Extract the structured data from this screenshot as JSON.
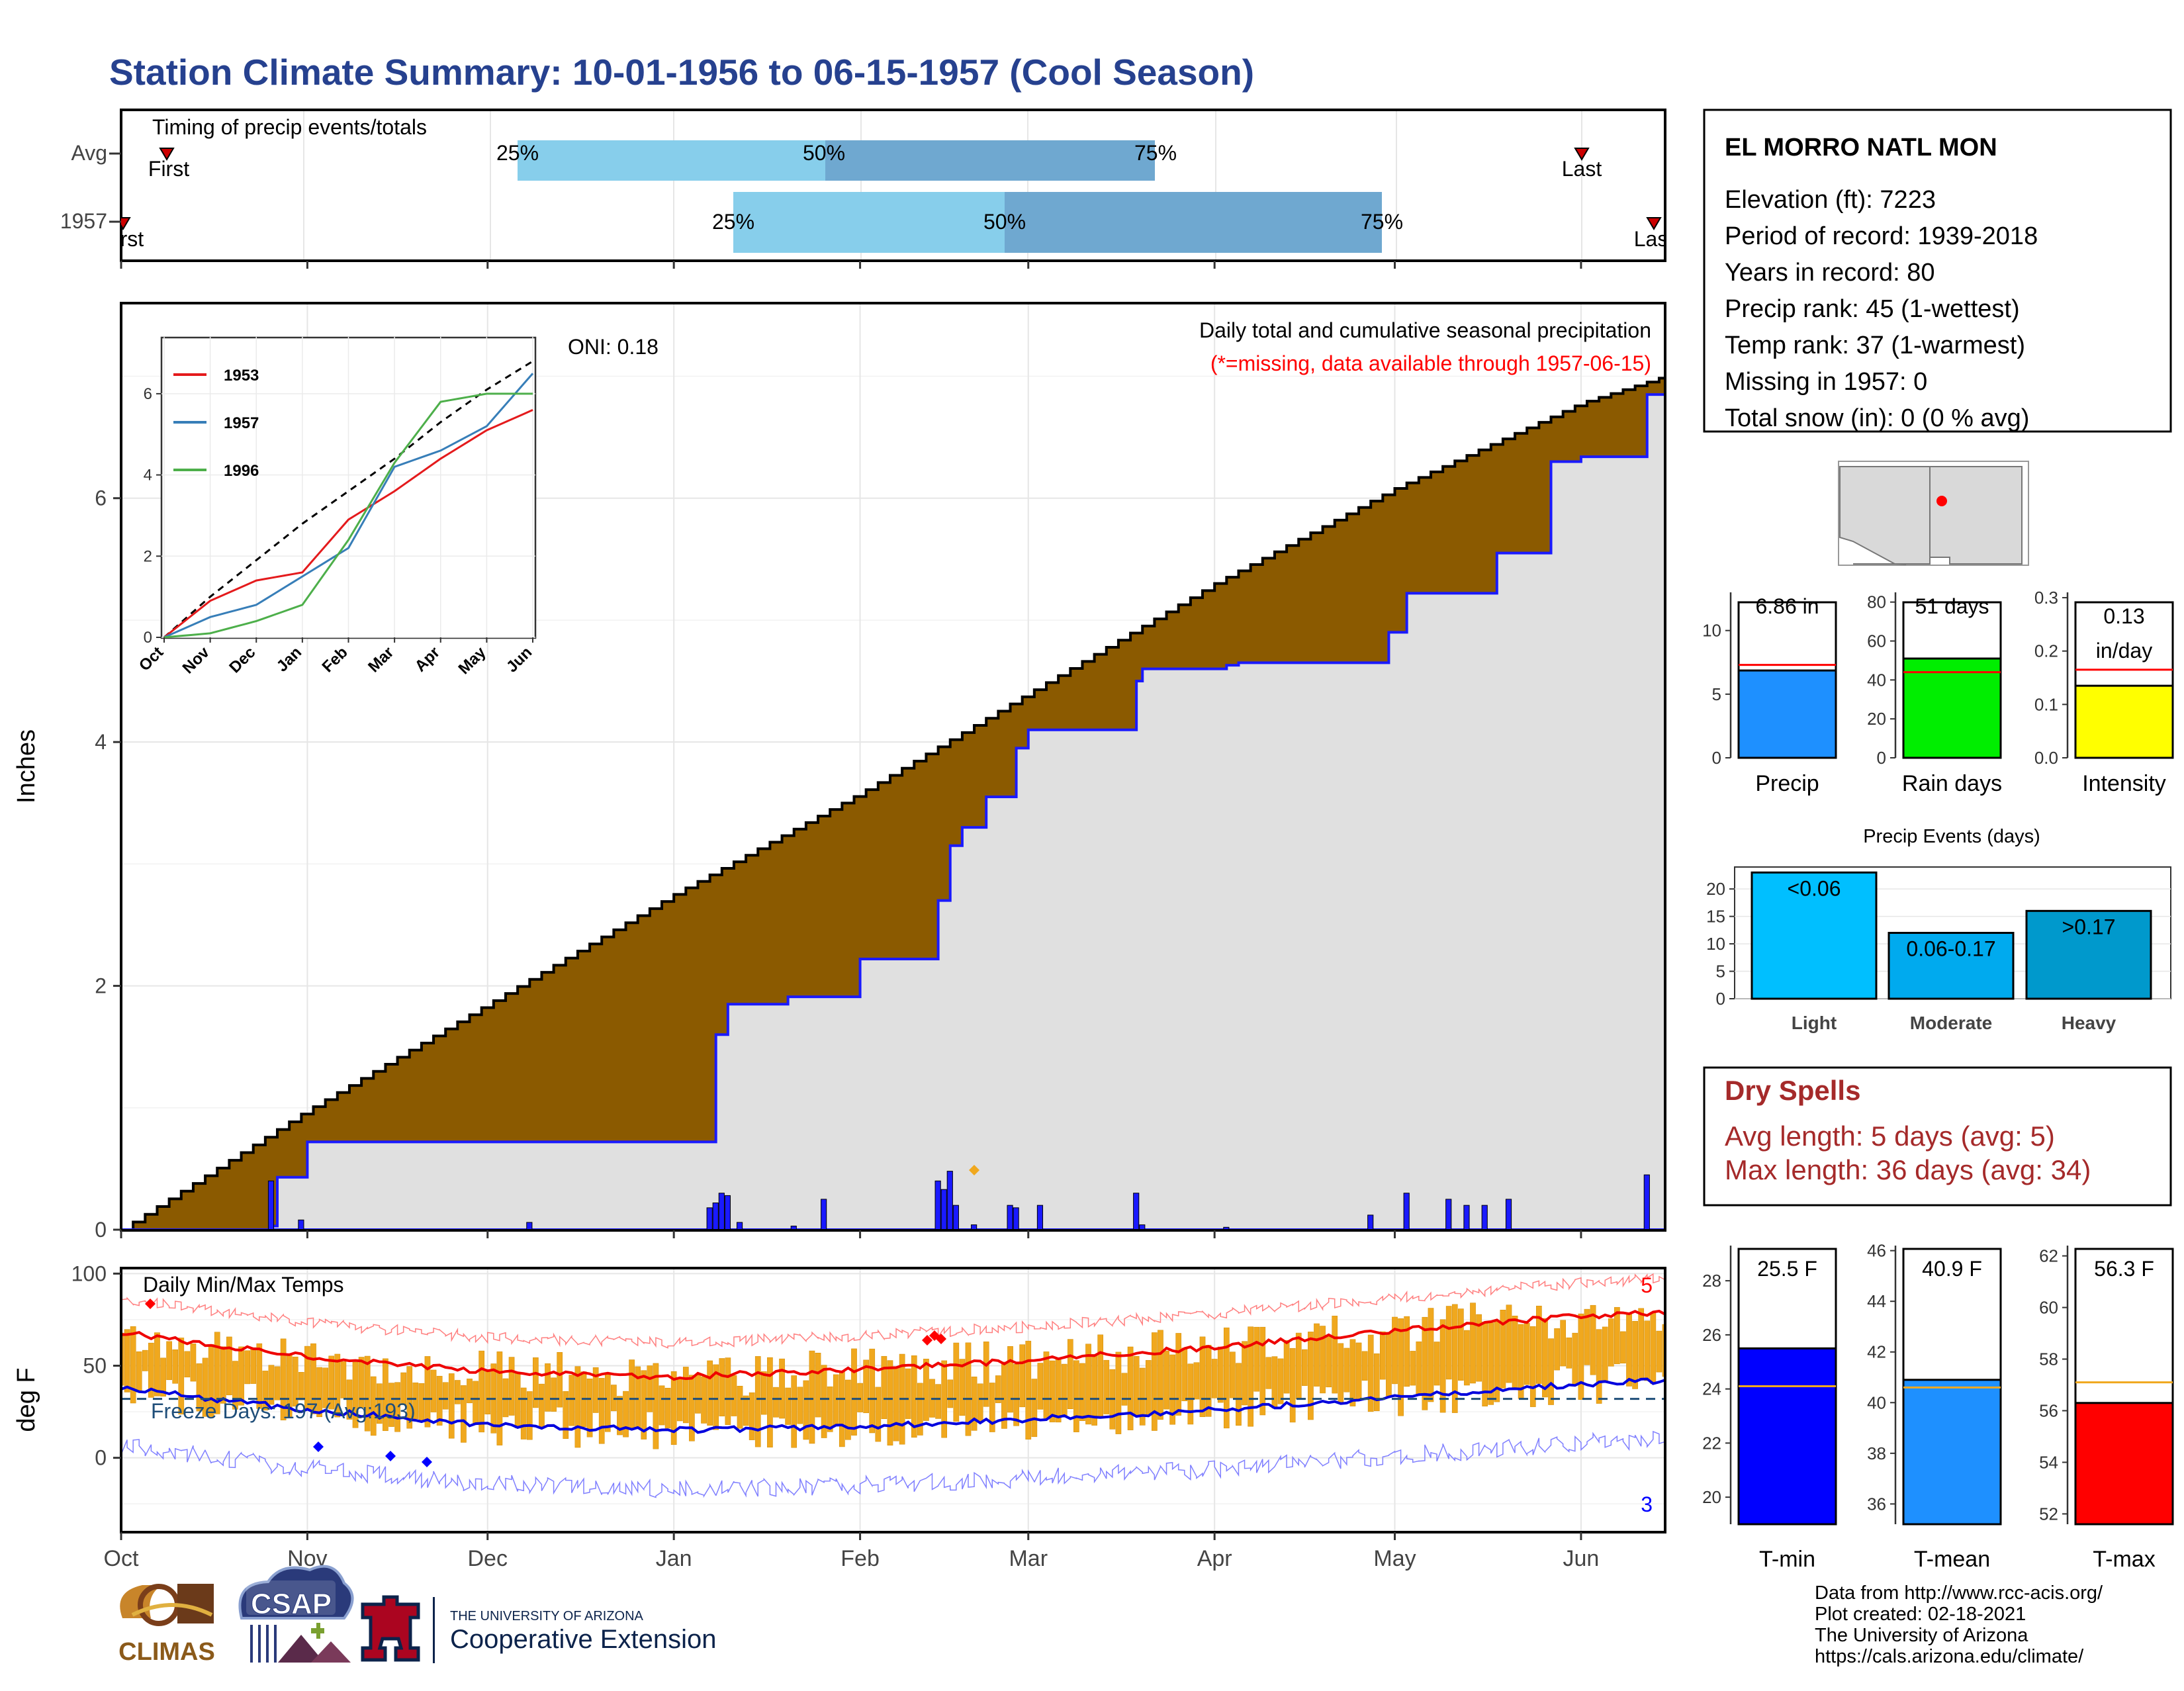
{
  "title": "Station Climate Summary: 10-01-1956 to 06-15-1957 (Cool Season)",
  "colors": {
    "title": "#26418f",
    "accum_fill": "#8b5a00",
    "obs_fill": "#e0e0e0",
    "obs_line": "#1a1aff",
    "q_light": "#87ceeb",
    "q_dark": "#6fa8d0",
    "temp_bar": "#f0a81e",
    "dry_spells": "#a52a2a",
    "missing_note": "#ff0000"
  },
  "timing": {
    "label": "Timing of precip events/totals",
    "rows": [
      "Avg",
      "1957"
    ],
    "avg": {
      "first_label": "First",
      "last_label": "Last",
      "q_labels": [
        "25%",
        "50%",
        "75%"
      ]
    },
    "y1957": {
      "first_label": "First",
      "last_label": "Last",
      "q_labels": [
        "25%",
        "50%",
        "75%"
      ]
    }
  },
  "months": [
    "Oct",
    "Nov",
    "Dec",
    "Jan",
    "Feb",
    "Mar",
    "Apr",
    "May",
    "Jun"
  ],
  "precip_panel": {
    "ylabel": "Inches",
    "yticks": [
      "0",
      "2",
      "4",
      "6"
    ],
    "subtitle": "Daily total and cumulative seasonal precipitation",
    "missing_note": "(*=missing, data available through 1957-06-15)",
    "oni": "ONI: 0.18"
  },
  "inset": {
    "yticks": [
      "0",
      "2",
      "4",
      "6"
    ],
    "months": [
      "Oct",
      "Nov",
      "Dec",
      "Jan",
      "Feb",
      "Mar",
      "Apr",
      "May",
      "Jun"
    ],
    "legend": [
      {
        "name": "1953",
        "color": "#e41a1c"
      },
      {
        "name": "1957",
        "color": "#377eb8"
      },
      {
        "name": "1996",
        "color": "#4daf4a"
      }
    ]
  },
  "temp_panel": {
    "ylabel": "deg F",
    "yticks": [
      "100",
      "50",
      "0"
    ],
    "label": "Daily Min/Max Temps",
    "freeze": "Freeze Days: 197 (Avg:193)",
    "record_high_count": "5",
    "record_low_count": "3"
  },
  "station": {
    "name": "EL MORRO NATL MON",
    "lines": [
      "Elevation (ft): 7223",
      "Period of record: 1939-2018",
      "Years in record: 80",
      "Precip rank: 45 (1-wettest)",
      "Temp rank: 37 (1-warmest)",
      "Missing in 1957: 0",
      "Total snow (in): 0 (0 % avg)"
    ]
  },
  "mini_bars": [
    {
      "label": "Precip",
      "value_text": "6.86 in",
      "value": 6.86,
      "avg": 7.3,
      "ymax": 13,
      "ticks": [
        "0",
        "5",
        "10"
      ],
      "tick_vals": [
        0,
        5,
        10
      ],
      "color": "#1e90ff"
    },
    {
      "label": "Rain days",
      "value_text": "51 days",
      "value": 51,
      "avg": 44,
      "ymax": 85,
      "ticks": [
        "0",
        "20",
        "40",
        "60",
        "80"
      ],
      "tick_vals": [
        0,
        20,
        40,
        60,
        80
      ],
      "color": "#00ee00"
    },
    {
      "label": "Intensity",
      "value_text": "0.13 in/day",
      "value": 0.135,
      "avg": 0.165,
      "ymax": 0.31,
      "ticks": [
        "0.0",
        "0.1",
        "0.2",
        "0.3"
      ],
      "tick_vals": [
        0,
        0.1,
        0.2,
        0.3
      ],
      "color": "#ffff00"
    }
  ],
  "events": {
    "title": "Precip Events (days)",
    "yticks": [
      "0",
      "5",
      "10",
      "15",
      "20"
    ],
    "bars": [
      {
        "category": "Light",
        "label": "<0.06",
        "value": 23,
        "color": "#00bfff"
      },
      {
        "category": "Moderate",
        "label": "0.06-0.17",
        "value": 12,
        "color": "#00aaee"
      },
      {
        "category": "Heavy",
        "label": ">0.17",
        "value": 16,
        "color": "#0099cc"
      }
    ]
  },
  "dry_spells": {
    "title": "Dry Spells",
    "avg": "Avg length: 5 days (avg: 5)",
    "max": "Max length: 36 days (avg: 34)"
  },
  "temp_bars": [
    {
      "label": "T-min",
      "value_text": "25.5 F",
      "value": 25.5,
      "avg": 24.1,
      "ymin": 19,
      "ymax": 29.3,
      "ticks": [
        "20",
        "22",
        "24",
        "26",
        "28"
      ],
      "tick_vals": [
        20,
        22,
        24,
        26,
        28
      ],
      "color": "#0000ff"
    },
    {
      "label": "T-mean",
      "value_text": "40.9 F",
      "value": 40.9,
      "avg": 40.6,
      "ymin": 35.2,
      "ymax": 46.2,
      "ticks": [
        "36",
        "38",
        "40",
        "42",
        "44",
        "46"
      ],
      "tick_vals": [
        36,
        38,
        40,
        42,
        44,
        46
      ],
      "color": "#1e90ff"
    },
    {
      "label": "T-max",
      "value_text": "56.3 F",
      "value": 56.3,
      "avg": 57.1,
      "ymin": 51.6,
      "ymax": 62.4,
      "ticks": [
        "52",
        "54",
        "56",
        "58",
        "60",
        "62"
      ],
      "tick_vals": [
        52,
        54,
        56,
        58,
        60,
        62
      ],
      "color": "#ff0000"
    }
  ],
  "footer": {
    "logos": [
      "CLIMAS",
      "CSAP",
      "THE UNIVERSITY OF ARIZONA",
      "Cooperative Extension"
    ],
    "credits": [
      "Data from http://www.rcc-acis.org/",
      "Plot created: 02-18-2021",
      "The University of Arizona",
      "https://cals.arizona.edu/climate/"
    ]
  },
  "chart_data": [
    {
      "type": "area",
      "name": "cumulative precipitation",
      "title": "Daily total and cumulative seasonal precipitation",
      "ylabel": "Inches",
      "ylim": [
        0,
        7.6
      ],
      "x_range": [
        "1956-10-01",
        "1957-06-15"
      ],
      "series": [
        {
          "name": "Average cumulative",
          "x": [
            "1956-10-01",
            "1956-11-01",
            "1956-12-01",
            "1957-01-01",
            "1957-02-01",
            "1957-03-01",
            "1957-04-01",
            "1957-05-01",
            "1957-06-01",
            "1957-06-15"
          ],
          "values": [
            0,
            0.98,
            1.85,
            2.75,
            3.58,
            4.4,
            5.3,
            6.08,
            6.78,
            7.0
          ]
        },
        {
          "name": "1957 cumulative",
          "x": [
            "1956-10-01",
            "1956-10-26",
            "1956-10-27",
            "1956-11-01",
            "1957-01-05",
            "1957-01-08",
            "1957-01-10",
            "1957-01-20",
            "1957-02-01",
            "1957-02-14",
            "1957-02-16",
            "1957-02-18",
            "1957-02-22",
            "1957-02-27",
            "1957-03-01",
            "1957-03-19",
            "1957-03-20",
            "1957-04-03",
            "1957-04-05",
            "1957-04-20",
            "1957-04-30",
            "1957-05-03",
            "1957-05-10",
            "1957-05-18",
            "1957-05-27",
            "1957-06-01",
            "1957-06-10",
            "1957-06-12",
            "1957-06-15"
          ],
          "values": [
            0,
            0.03,
            0.43,
            0.72,
            0.72,
            1.6,
            1.85,
            1.91,
            2.22,
            2.7,
            3.15,
            3.3,
            3.55,
            3.95,
            4.1,
            4.5,
            4.6,
            4.63,
            4.65,
            4.65,
            4.9,
            5.22,
            5.22,
            5.55,
            6.3,
            6.34,
            6.34,
            6.85,
            6.86
          ]
        }
      ],
      "daily_bars": {
        "x": [
          "1956-10-26",
          "1956-10-31",
          "1956-12-08",
          "1957-01-07",
          "1957-01-08",
          "1957-01-09",
          "1957-01-10",
          "1957-01-12",
          "1957-01-21",
          "1957-01-26",
          "1957-02-14",
          "1957-02-15",
          "1957-02-16",
          "1957-02-17",
          "1957-02-20",
          "1957-02-26",
          "1957-02-27",
          "1957-03-03",
          "1957-03-19",
          "1957-03-20",
          "1957-04-03",
          "1957-04-27",
          "1957-05-03",
          "1957-05-10",
          "1957-05-13",
          "1957-05-16",
          "1957-05-20",
          "1957-06-12"
        ],
        "values": [
          0.4,
          0.08,
          0.06,
          0.18,
          0.22,
          0.3,
          0.28,
          0.06,
          0.03,
          0.25,
          0.4,
          0.33,
          0.48,
          0.2,
          0.04,
          0.2,
          0.18,
          0.2,
          0.3,
          0.04,
          0.02,
          0.12,
          0.3,
          0.25,
          0.2,
          0.2,
          0.25,
          0.45
        ]
      }
    },
    {
      "type": "line",
      "name": "inset cumulative comparison",
      "ylim": [
        0,
        7
      ],
      "categories": [
        "Oct",
        "Nov",
        "Dec",
        "Jan",
        "Feb",
        "Mar",
        "Apr",
        "May",
        "Jun"
      ],
      "series": [
        {
          "name": "1953",
          "values": [
            0,
            0.9,
            1.4,
            1.6,
            2.9,
            3.6,
            4.4,
            5.1,
            5.6
          ]
        },
        {
          "name": "1957",
          "values": [
            0,
            0.5,
            0.8,
            1.5,
            2.2,
            4.2,
            4.6,
            5.2,
            6.5
          ]
        },
        {
          "name": "1996",
          "values": [
            0,
            0.1,
            0.4,
            0.8,
            2.4,
            4.3,
            5.8,
            6.0,
            6.0
          ]
        },
        {
          "name": "Average",
          "values": [
            0,
            1.0,
            1.9,
            2.8,
            3.6,
            4.4,
            5.3,
            6.1,
            6.8
          ]
        }
      ]
    },
    {
      "type": "bar",
      "name": "daily min/max temperature",
      "ylabel": "deg F",
      "ylim": [
        -40,
        103
      ],
      "series": [
        {
          "name": "Avg max",
          "x": [
            "1956-10-01",
            "1956-11-01",
            "1956-12-01",
            "1957-01-01",
            "1957-02-01",
            "1957-03-01",
            "1957-04-01",
            "1957-05-01",
            "1957-06-01",
            "1957-06-15"
          ],
          "values": [
            68,
            55,
            47,
            44,
            48,
            53,
            60,
            69,
            77,
            79
          ]
        },
        {
          "name": "Avg min",
          "x": [
            "1956-10-01",
            "1956-11-01",
            "1956-12-01",
            "1957-01-01",
            "1957-02-01",
            "1957-03-01",
            "1957-04-01",
            "1957-05-01",
            "1957-06-01",
            "1957-06-15"
          ],
          "values": [
            38,
            26,
            18,
            15,
            17,
            21,
            26,
            33,
            40,
            42
          ]
        },
        {
          "name": "Freeze threshold",
          "values": [
            32
          ]
        }
      ]
    }
  ]
}
